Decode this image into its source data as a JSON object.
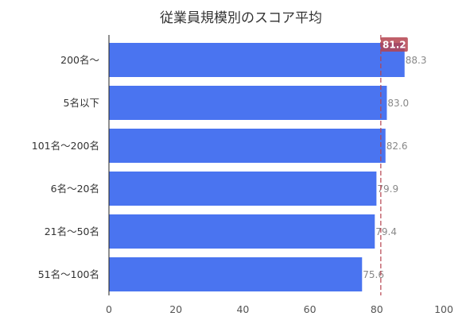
{
  "chart_data": {
    "type": "bar",
    "orientation": "horizontal",
    "title": "従業員規模別のスコア平均",
    "categories": [
      "200名～",
      "5名以下",
      "101名～200名",
      "6名～20名",
      "21名～50名",
      "51名～100名"
    ],
    "values": [
      88.3,
      83.0,
      82.6,
      79.9,
      79.4,
      75.6
    ],
    "value_labels": [
      "88.3",
      "83.0",
      "82.6",
      "79.9",
      "79.4",
      "75.6"
    ],
    "xlim": [
      0,
      100
    ],
    "xticks": [
      0,
      20,
      40,
      60,
      80,
      100
    ],
    "xtick_labels": [
      "0",
      "20",
      "40",
      "60",
      "80",
      "100"
    ],
    "grid": false,
    "reference_line": {
      "value": 81.2,
      "label": "81.2",
      "color": "#b5434f"
    },
    "bar_color": "#4a74f0"
  }
}
